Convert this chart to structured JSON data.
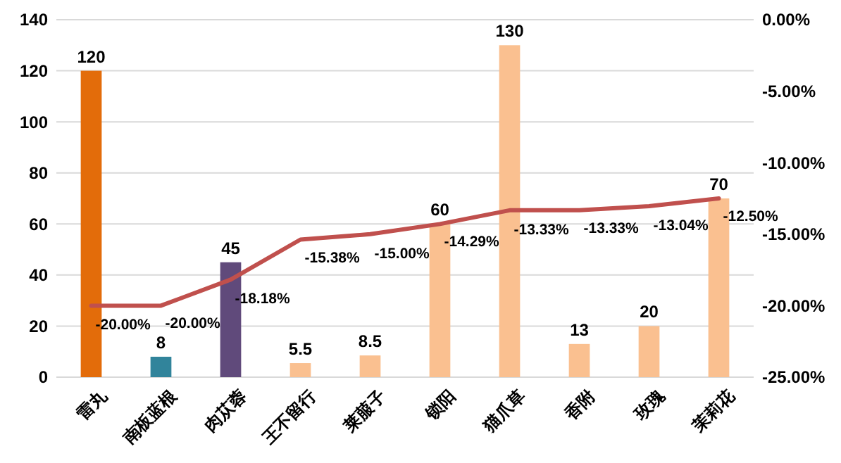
{
  "chart_data": {
    "type": "bar",
    "categories": [
      "雷丸",
      "南板蓝根",
      "肉苁蓉",
      "王不留行",
      "莱菔子",
      "锁阳",
      "猫爪草",
      "香附",
      "玫瑰",
      "茉莉花"
    ],
    "series": [
      {
        "colors": [
          "#e36c0a",
          "#31849b",
          "#604a7b",
          "#fac090",
          "#fac090",
          "#fac090",
          "#fac090",
          "#fac090",
          "#fac090",
          "#fac090"
        ],
        "values": [
          120,
          8,
          45,
          5.5,
          8.5,
          60,
          130,
          13,
          20,
          70
        ],
        "value_labels": [
          "120",
          "8",
          "45",
          "5.5",
          "8.5",
          "60",
          "130",
          "13",
          "20",
          "70"
        ]
      },
      {
        "type": "line",
        "axis": "y2",
        "color": "#c0504d",
        "values": [
          -20,
          -20,
          -18.18,
          -15.38,
          -15,
          -14.29,
          -13.33,
          -13.33,
          -13.04,
          -12.5
        ],
        "value_labels": [
          "-20.00%",
          "-20.00%",
          "-18.18%",
          "-15.38%",
          "-15.00%",
          "-14.29%",
          "-13.33%",
          "-13.33%",
          "-13.04%",
          "-12.50%"
        ]
      }
    ],
    "ylim": [
      0,
      140
    ],
    "yticks": [
      0,
      20,
      40,
      60,
      80,
      100,
      120,
      140
    ],
    "y2lim": [
      -25,
      0
    ],
    "y2ticks": [
      {
        "value": -25,
        "label": "-25.00%"
      },
      {
        "value": -20,
        "label": "-20.00%"
      },
      {
        "value": -15,
        "label": "-15.00%"
      },
      {
        "value": -10,
        "label": "-10.00%"
      },
      {
        "value": -5,
        "label": "-5.00%"
      },
      {
        "value": 0,
        "label": "0.00%"
      }
    ],
    "grid": "y",
    "legend": false,
    "marker": "none",
    "line_style": "solid"
  }
}
